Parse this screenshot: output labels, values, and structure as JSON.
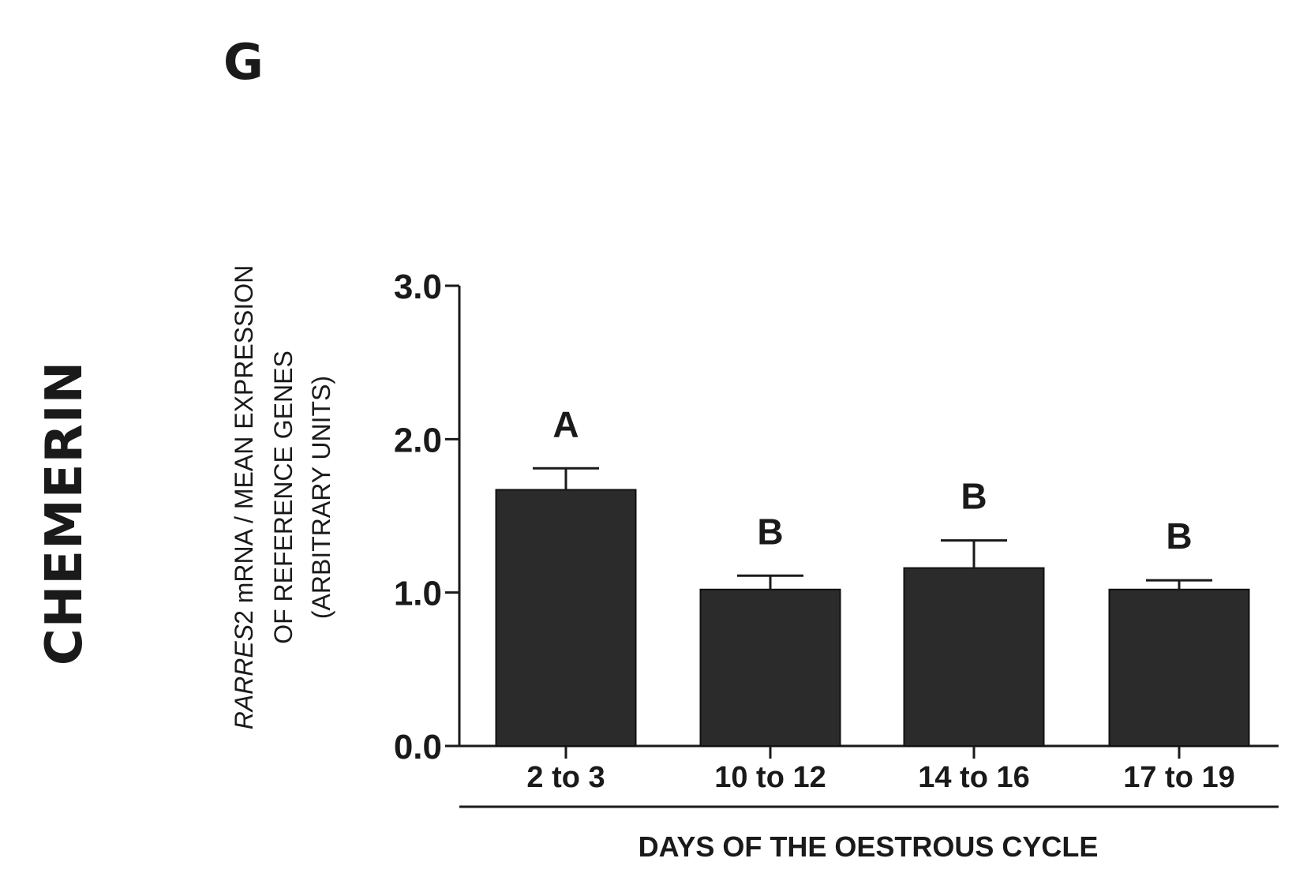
{
  "panel_letter": "G",
  "side_title": "CHEMERIN",
  "chart_data": {
    "type": "bar",
    "categories": [
      "2 to 3",
      "10 to 12",
      "14 to 16",
      "17 to 19"
    ],
    "values": [
      1.67,
      1.02,
      1.16,
      1.02
    ],
    "errors": [
      0.14,
      0.09,
      0.18,
      0.06
    ],
    "significance": [
      "A",
      "B",
      "B",
      "B"
    ],
    "ylabel_lines": [
      "RARRES2 mRNA / MEAN EXPRESSION",
      "OF REFERENCE GENES",
      "(ARBITRARY UNITS)"
    ],
    "ylabel_italic_part": "RARRES",
    "xlabel": "DAYS OF THE OESTROUS CYCLE",
    "ylim": [
      0,
      3
    ],
    "yticks": [
      0,
      1,
      2,
      3
    ],
    "ytick_labels": [
      "0.0",
      "1.0",
      "2.0",
      "3.0"
    ],
    "bar_color": "#2b2b2b"
  }
}
